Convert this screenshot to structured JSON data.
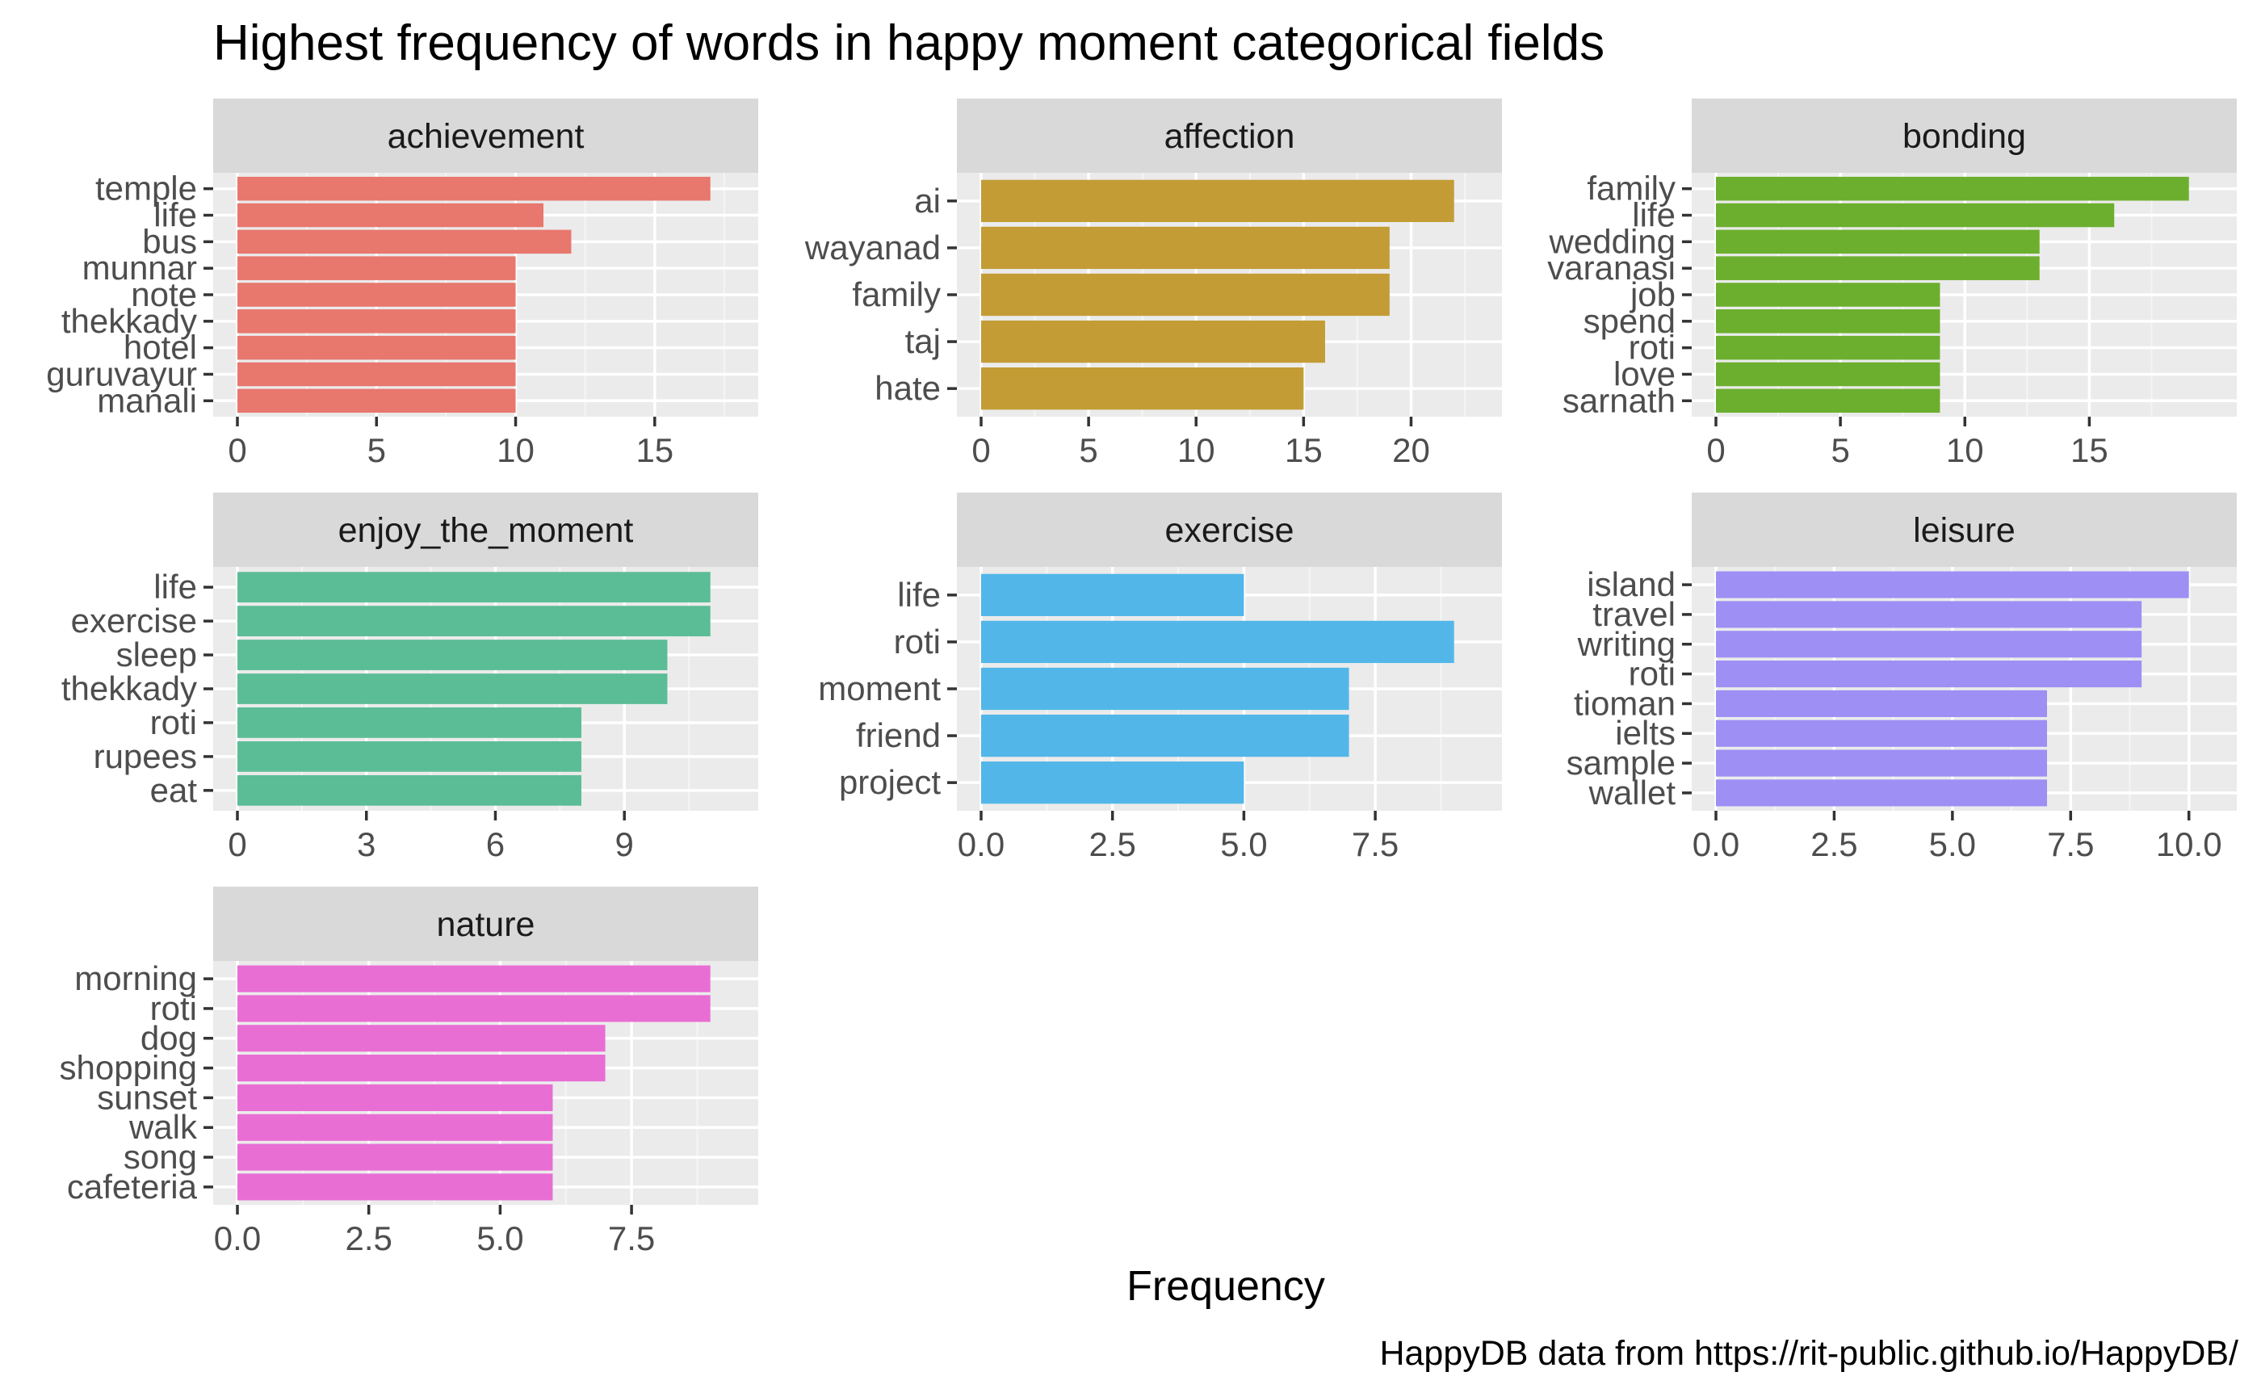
{
  "chart_data": {
    "type": "bar",
    "title": "Highest frequency of words in happy moment categorical fields",
    "xlabel": "Frequency",
    "caption": "HappyDB data from https://rit-public.github.io/HappyDB/",
    "orientation": "horizontal",
    "grid": true,
    "panels": [
      {
        "name": "achievement",
        "color": "#E8776E",
        "categories": [
          "temple",
          "life",
          "bus",
          "munnar",
          "note",
          "thekkady",
          "hotel",
          "guruvayur",
          "manali"
        ],
        "values": [
          17,
          11,
          12,
          10,
          10,
          10,
          10,
          10,
          10
        ],
        "xlim": [
          0,
          17.85
        ],
        "ticks": [
          0,
          5,
          10,
          15
        ],
        "tick_labels": [
          "0",
          "5",
          "10",
          "15"
        ]
      },
      {
        "name": "affection",
        "color": "#C39C36",
        "categories": [
          "ai",
          "wayanad",
          "family",
          "taj",
          "hate"
        ],
        "values": [
          22,
          19,
          19,
          16,
          15
        ],
        "xlim": [
          0,
          23.1
        ],
        "ticks": [
          0,
          5,
          10,
          15,
          20
        ],
        "tick_labels": [
          "0",
          "5",
          "10",
          "15",
          "20"
        ]
      },
      {
        "name": "bonding",
        "color": "#6CAF2E",
        "categories": [
          "family",
          "life",
          "wedding",
          "varanasi",
          "job",
          "spend",
          "roti",
          "love",
          "sarnath"
        ],
        "values": [
          19,
          16,
          13,
          13,
          9,
          9,
          9,
          9,
          9
        ],
        "xlim": [
          0,
          19.95
        ],
        "ticks": [
          0,
          5,
          10,
          15
        ],
        "tick_labels": [
          "0",
          "5",
          "10",
          "15"
        ]
      },
      {
        "name": "enjoy_the_moment",
        "color": "#5BBD96",
        "categories": [
          "life",
          "exercise",
          "sleep",
          "thekkady",
          "roti",
          "rupees",
          "eat"
        ],
        "values": [
          11,
          11,
          10,
          10,
          8,
          8,
          8
        ],
        "xlim": [
          0,
          11.55
        ],
        "ticks": [
          0,
          3,
          6,
          9
        ],
        "tick_labels": [
          "0",
          "3",
          "6",
          "9"
        ]
      },
      {
        "name": "exercise",
        "color": "#52B7E8",
        "categories": [
          "life",
          "roti",
          "moment",
          "friend",
          "project"
        ],
        "values": [
          5,
          9,
          7,
          7,
          5
        ],
        "xlim": [
          0,
          9.45
        ],
        "ticks": [
          0,
          2.5,
          5,
          7.5
        ],
        "tick_labels": [
          "0.0",
          "2.5",
          "5.0",
          "7.5"
        ]
      },
      {
        "name": "leisure",
        "color": "#9D8FF4",
        "categories": [
          "island",
          "travel",
          "writing",
          "roti",
          "tioman",
          "ielts",
          "sample",
          "wallet"
        ],
        "values": [
          10,
          9,
          9,
          9,
          7,
          7,
          7,
          7
        ],
        "xlim": [
          0,
          10.5
        ],
        "ticks": [
          0,
          2.5,
          5,
          7.5,
          10
        ],
        "tick_labels": [
          "0.0",
          "2.5",
          "5.0",
          "7.5",
          "10.0"
        ]
      },
      {
        "name": "nature",
        "color": "#E96ED4",
        "categories": [
          "morning",
          "roti",
          "dog",
          "shopping",
          "sunset",
          "walk",
          "song",
          "cafeteria"
        ],
        "values": [
          9,
          9,
          7,
          7,
          6,
          6,
          6,
          6
        ],
        "xlim": [
          0,
          9.45
        ],
        "ticks": [
          0,
          2.5,
          5,
          7.5
        ],
        "tick_labels": [
          "0.0",
          "2.5",
          "5.0",
          "7.5"
        ]
      }
    ]
  }
}
